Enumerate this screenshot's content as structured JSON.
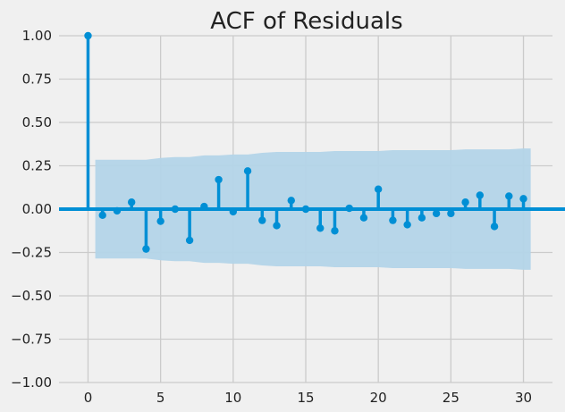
{
  "chart_data": {
    "type": "stem",
    "title": "ACF of Residuals",
    "xlabel": "",
    "ylabel": "",
    "xlim": [
      -2,
      32
    ],
    "ylim": [
      -1.0,
      1.0
    ],
    "x_ticks": [
      0,
      5,
      10,
      15,
      20,
      25,
      30
    ],
    "x_tick_labels": [
      "0",
      "5",
      "10",
      "15",
      "20",
      "25",
      "30"
    ],
    "y_ticks": [
      -1.0,
      -0.75,
      -0.5,
      -0.25,
      0.0,
      0.25,
      0.5,
      0.75,
      1.0
    ],
    "y_tick_labels": [
      "−1.00",
      "−0.75",
      "−0.50",
      "−0.25",
      "0.00",
      "0.25",
      "0.50",
      "0.75",
      "1.00"
    ],
    "grid": true,
    "colors": {
      "stem": "#008fd5",
      "band": "#b3d4e8",
      "background": "#f0f0f0",
      "grid": "#cbcbcb"
    },
    "lags": [
      0,
      1,
      2,
      3,
      4,
      5,
      6,
      7,
      8,
      9,
      10,
      11,
      12,
      13,
      14,
      15,
      16,
      17,
      18,
      19,
      20,
      21,
      22,
      23,
      24,
      25,
      26,
      27,
      28,
      29,
      30
    ],
    "acf": [
      1.0,
      -0.035,
      -0.01,
      0.04,
      -0.23,
      -0.07,
      0.0,
      -0.18,
      0.015,
      0.17,
      -0.015,
      0.22,
      -0.065,
      -0.095,
      0.05,
      0.0,
      -0.11,
      -0.125,
      0.005,
      -0.05,
      0.115,
      -0.065,
      -0.09,
      -0.05,
      -0.025,
      -0.025,
      0.04,
      0.08,
      -0.1,
      0.075,
      0.06
    ],
    "confidence_band": {
      "lags": [
        0.5,
        1,
        2,
        3,
        4,
        5,
        6,
        7,
        8,
        9,
        10,
        11,
        12,
        13,
        14,
        15,
        16,
        17,
        18,
        19,
        20,
        21,
        22,
        23,
        24,
        25,
        26,
        27,
        28,
        29,
        30,
        30.5
      ],
      "upper": [
        0.285,
        0.285,
        0.285,
        0.285,
        0.285,
        0.295,
        0.3,
        0.3,
        0.31,
        0.31,
        0.315,
        0.315,
        0.325,
        0.33,
        0.33,
        0.33,
        0.33,
        0.335,
        0.335,
        0.335,
        0.335,
        0.34,
        0.34,
        0.34,
        0.34,
        0.34,
        0.345,
        0.345,
        0.345,
        0.345,
        0.35,
        0.35
      ]
    }
  }
}
